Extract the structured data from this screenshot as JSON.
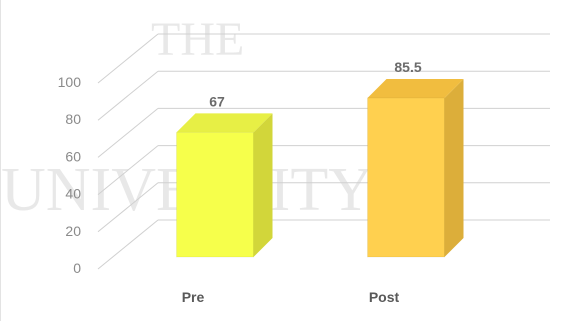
{
  "watermark": {
    "line1": "THE",
    "line2": "UNIVERSITY"
  },
  "chart_data": {
    "type": "bar",
    "style": "3d",
    "categories": [
      "Pre",
      "Post"
    ],
    "values": [
      67,
      85.5
    ],
    "data_labels": [
      "67",
      "85.5"
    ],
    "ylim": [
      0,
      100
    ],
    "yticks": [
      0,
      20,
      40,
      60,
      80,
      100
    ],
    "grid": true,
    "title": "",
    "xlabel": "",
    "ylabel": "",
    "colors": {
      "Pre": {
        "front": "#f6ff4b",
        "side": "#d2d63a",
        "top": "#e7ef45"
      },
      "Post": {
        "front": "#ffd04f",
        "side": "#dcae3a",
        "top": "#f1bd3f"
      },
      "grid": "#d0d0d0",
      "tick": "#8a8a8a"
    }
  }
}
